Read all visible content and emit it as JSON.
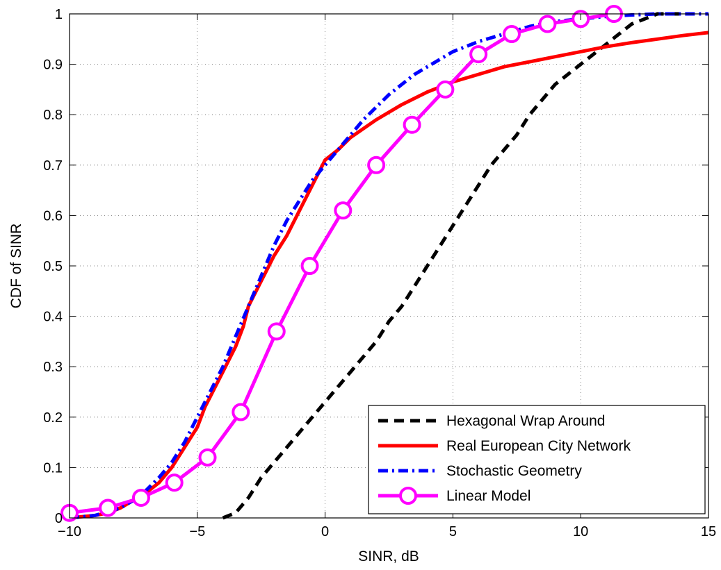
{
  "chart_data": {
    "type": "line",
    "title": "",
    "xlabel": "SINR, dB",
    "ylabel": "CDF of SINR",
    "xlim": [
      -10,
      15
    ],
    "ylim": [
      0,
      1
    ],
    "xticks": [
      -10,
      -5,
      0,
      5,
      10,
      15
    ],
    "xtick_labels": [
      "−10",
      "−5",
      "0",
      "5",
      "10",
      "15"
    ],
    "yticks": [
      0,
      0.1,
      0.2,
      0.3,
      0.4,
      0.5,
      0.6,
      0.7,
      0.8,
      0.9,
      1
    ],
    "ytick_labels": [
      "0",
      "0.1",
      "0.2",
      "0.3",
      "0.4",
      "0.5",
      "0.6",
      "0.7",
      "0.8",
      "0.9",
      "1"
    ],
    "grid": true,
    "legend_position": "bottom-right",
    "series": [
      {
        "name": "Hexagonal Wrap Around",
        "color": "#000000",
        "style": "dashed",
        "marker": "none",
        "x": [
          -4,
          -3.5,
          -3,
          -2.5,
          -2,
          -1.5,
          -1,
          -0.5,
          0,
          0.5,
          1,
          1.5,
          2,
          2.5,
          3,
          3.5,
          4,
          4.5,
          5,
          5.5,
          6,
          6.5,
          7,
          7.5,
          8,
          8.5,
          9,
          9.5,
          10,
          10.5,
          11,
          11.5,
          12,
          12.5,
          13,
          13.5,
          14
        ],
        "y": [
          0,
          0.01,
          0.04,
          0.08,
          0.11,
          0.14,
          0.17,
          0.2,
          0.23,
          0.26,
          0.29,
          0.32,
          0.35,
          0.39,
          0.42,
          0.46,
          0.5,
          0.54,
          0.58,
          0.62,
          0.66,
          0.7,
          0.73,
          0.76,
          0.8,
          0.83,
          0.86,
          0.88,
          0.9,
          0.92,
          0.94,
          0.96,
          0.98,
          0.99,
          1.0,
          1.0,
          1.0
        ]
      },
      {
        "name": "Real European City Network",
        "color": "#ff0000",
        "style": "solid",
        "marker": "none",
        "x": [
          -10,
          -9,
          -8.5,
          -8,
          -7.5,
          -7,
          -6.5,
          -6,
          -5.5,
          -5,
          -4.7,
          -4.5,
          -4,
          -3.5,
          -3.2,
          -3,
          -2.5,
          -2,
          -1.5,
          -1,
          -0.5,
          0,
          0.5,
          1,
          2,
          3,
          4,
          5,
          6,
          7,
          8,
          9,
          10,
          11,
          12,
          13,
          14,
          15
        ],
        "y": [
          0,
          0.005,
          0.01,
          0.02,
          0.035,
          0.05,
          0.07,
          0.1,
          0.14,
          0.18,
          0.22,
          0.24,
          0.29,
          0.34,
          0.38,
          0.42,
          0.47,
          0.52,
          0.56,
          0.61,
          0.66,
          0.71,
          0.73,
          0.755,
          0.79,
          0.82,
          0.845,
          0.865,
          0.88,
          0.895,
          0.905,
          0.915,
          0.925,
          0.935,
          0.943,
          0.95,
          0.957,
          0.963
        ]
      },
      {
        "name": "Stochastic Geometry",
        "color": "#0000ff",
        "style": "dashdot",
        "marker": "none",
        "x": [
          -10,
          -9,
          -8,
          -7.5,
          -7,
          -6.5,
          -6,
          -5.5,
          -5,
          -4.5,
          -4,
          -3.5,
          -3,
          -2.5,
          -2,
          -1.5,
          -1,
          -0.5,
          0,
          0.5,
          1,
          1.5,
          2,
          2.5,
          3,
          3.5,
          4,
          4.5,
          5,
          5.5,
          6,
          7,
          8,
          9,
          10,
          11,
          12,
          13,
          14,
          15
        ],
        "y": [
          0,
          0.005,
          0.02,
          0.035,
          0.055,
          0.08,
          0.11,
          0.15,
          0.2,
          0.25,
          0.3,
          0.36,
          0.42,
          0.48,
          0.54,
          0.59,
          0.63,
          0.67,
          0.7,
          0.73,
          0.76,
          0.79,
          0.815,
          0.84,
          0.86,
          0.88,
          0.895,
          0.91,
          0.925,
          0.935,
          0.945,
          0.96,
          0.975,
          0.985,
          0.99,
          0.995,
          0.998,
          1.0,
          1.0,
          1.0
        ]
      },
      {
        "name": "Linear Model",
        "color": "#ff00ff",
        "style": "solid",
        "marker": "circle",
        "x": [
          -10,
          -8.5,
          -7.2,
          -5.9,
          -4.6,
          -3.3,
          -1.9,
          -0.6,
          0.7,
          2,
          3.4,
          4.7,
          6,
          7.3,
          8.7,
          10,
          11.3
        ],
        "y": [
          0.01,
          0.02,
          0.04,
          0.07,
          0.12,
          0.21,
          0.37,
          0.5,
          0.61,
          0.7,
          0.78,
          0.85,
          0.92,
          0.96,
          0.98,
          0.99,
          1.0
        ]
      }
    ]
  }
}
